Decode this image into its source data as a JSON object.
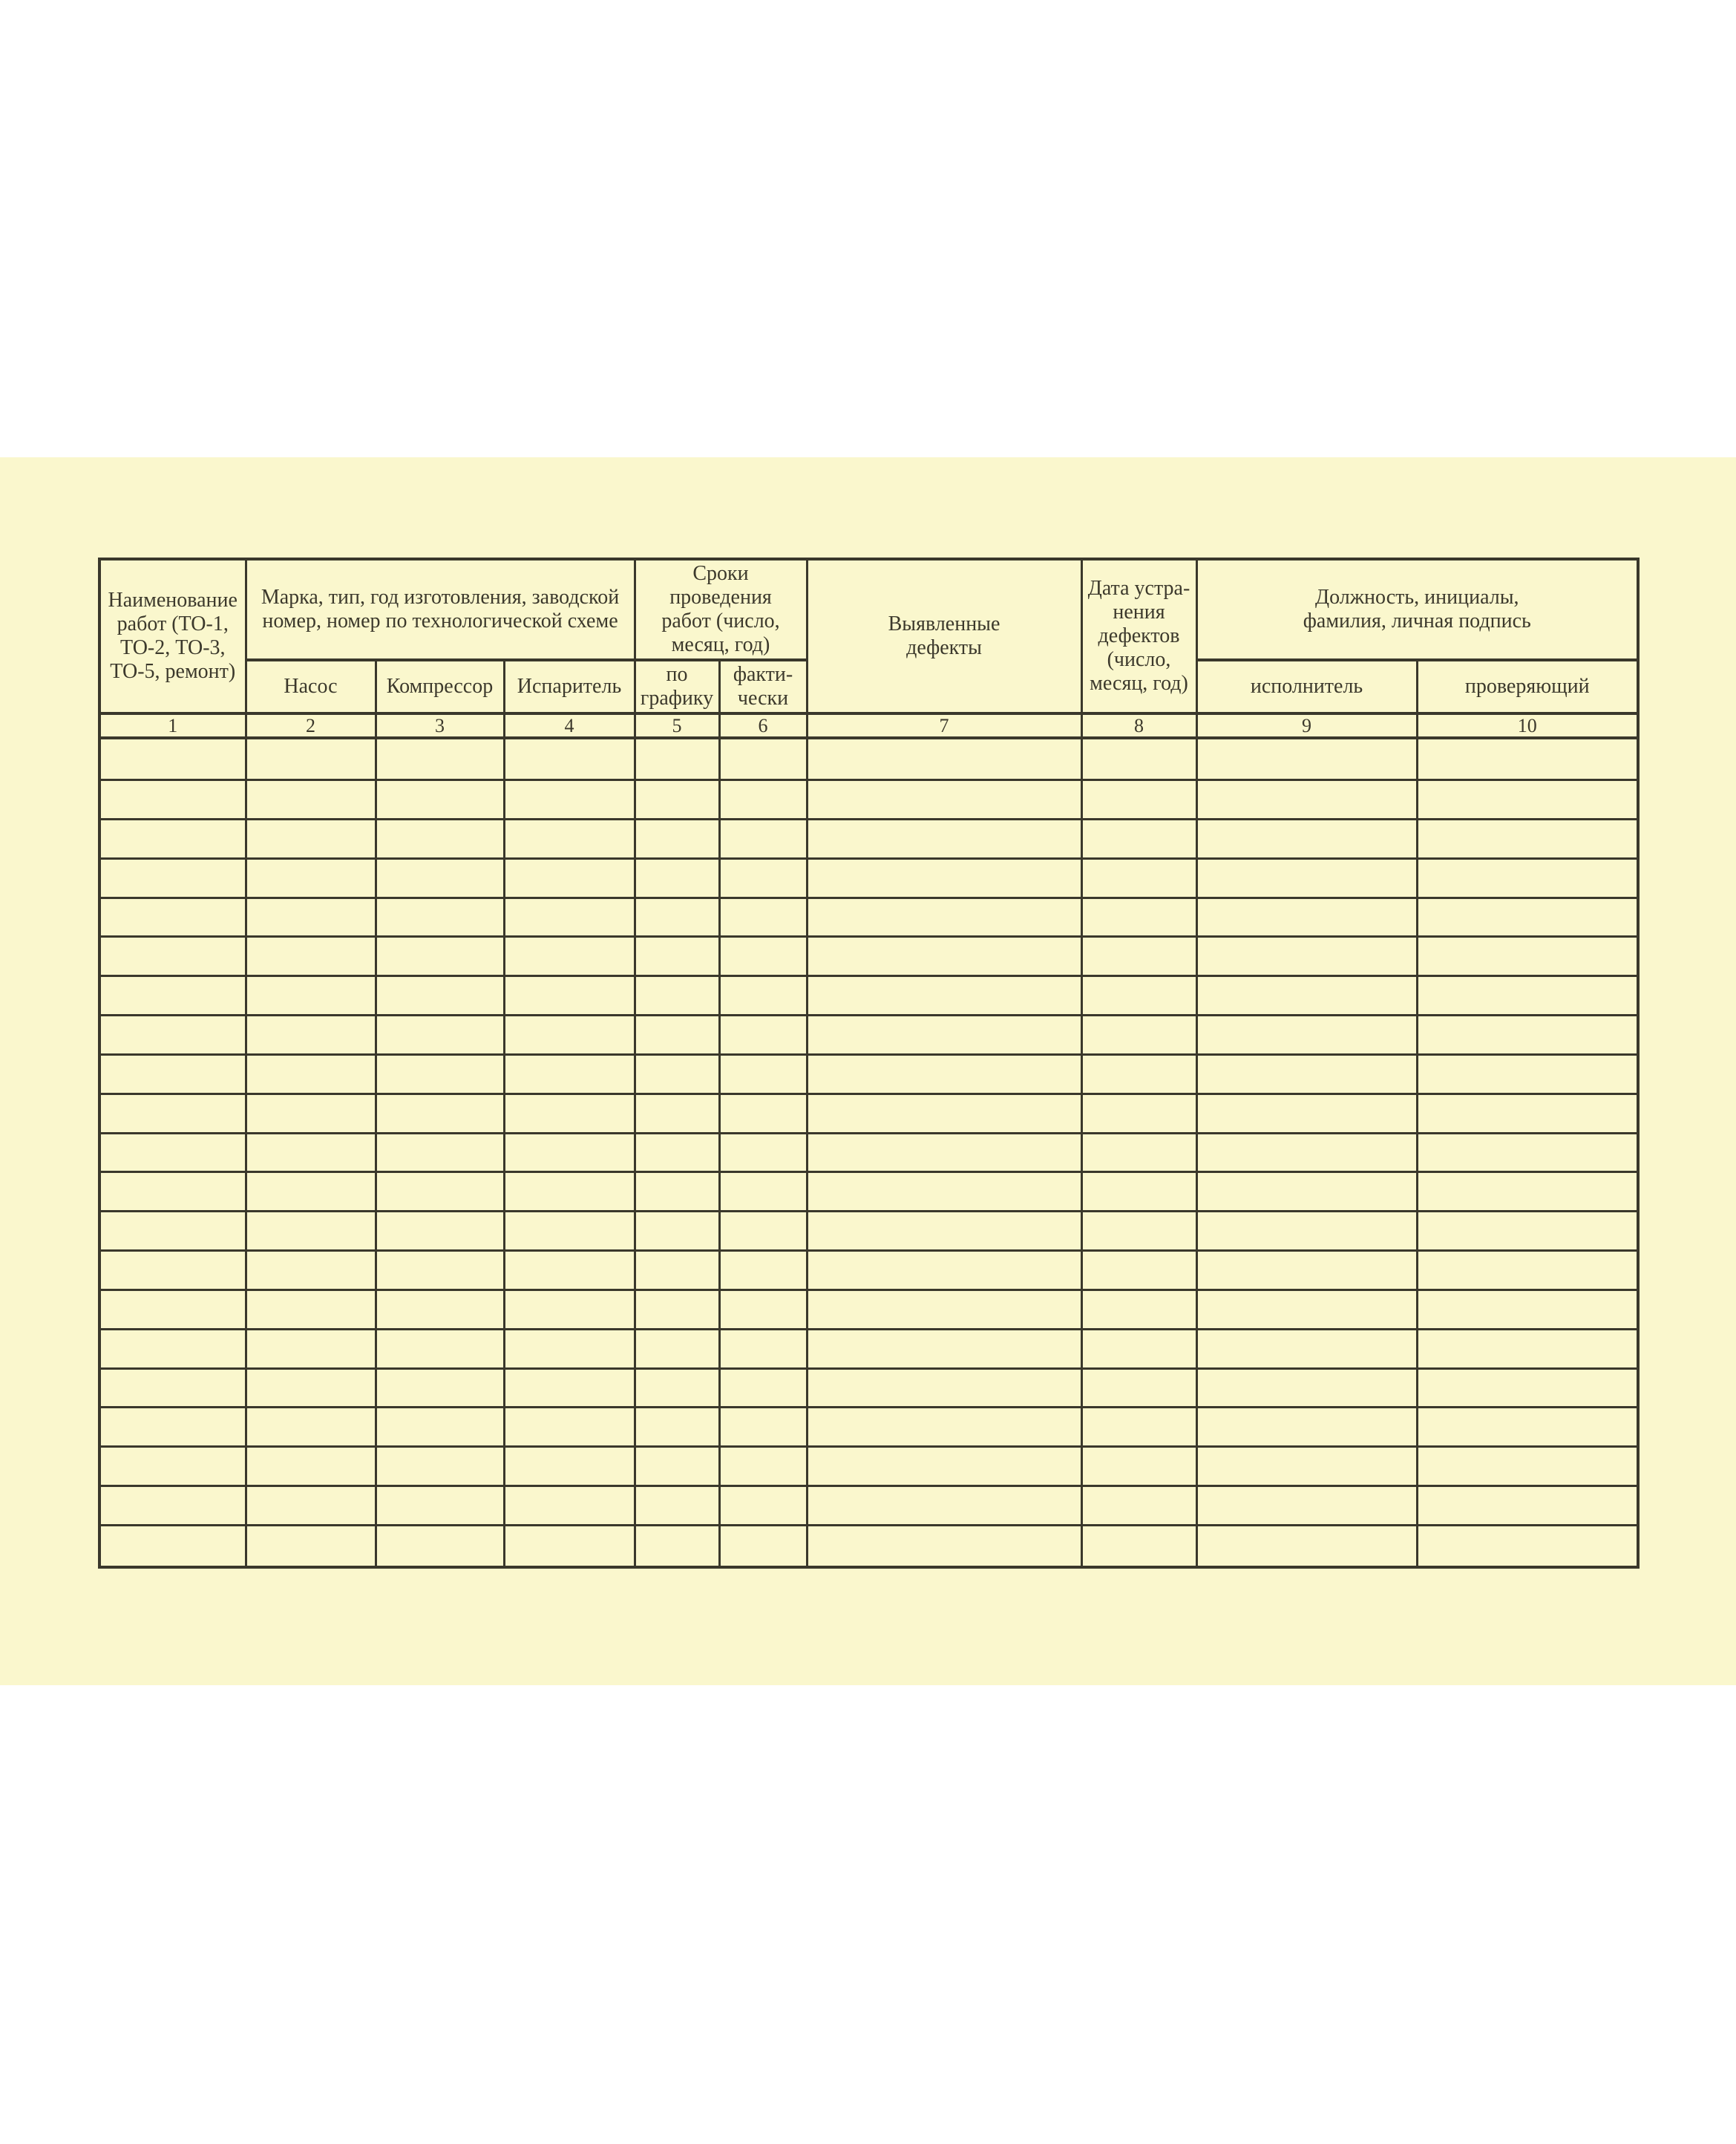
{
  "page": {
    "background_color": "#ffffff",
    "paper_color": "#faf7cd",
    "line_color": "#3a382b",
    "text_color": "#3c392c"
  },
  "table": {
    "header": {
      "works": "Наименование\nработ (ТО-1,\nТО-2, ТО-3,\nТО-5, ремонт)",
      "mark": {
        "label": "Марка, тип, год изготовления, заводской\nномер, номер по технологической схеме",
        "cols": [
          "Насос",
          "Компрессор",
          "Испаритель"
        ]
      },
      "terms": {
        "label": "Сроки проведения\nработ (число,\nмесяц, год)",
        "cols": [
          "по\nграфику",
          "факти-\nчески"
        ]
      },
      "defects": "Выявленные\nдефекты",
      "fix_date": "Дата устра-\nнения\nдефектов\n(число,\nмесяц, год)",
      "person": {
        "label": "Должность, инициалы,\nфамилия, личная подпись",
        "cols": [
          "исполнитель",
          "проверяющий"
        ]
      },
      "numbers": [
        "1",
        "2",
        "3",
        "4",
        "5",
        "6",
        "7",
        "8",
        "9",
        "10"
      ]
    },
    "body": {
      "row_count": 21,
      "col_count": 10,
      "cell_value": ""
    }
  }
}
